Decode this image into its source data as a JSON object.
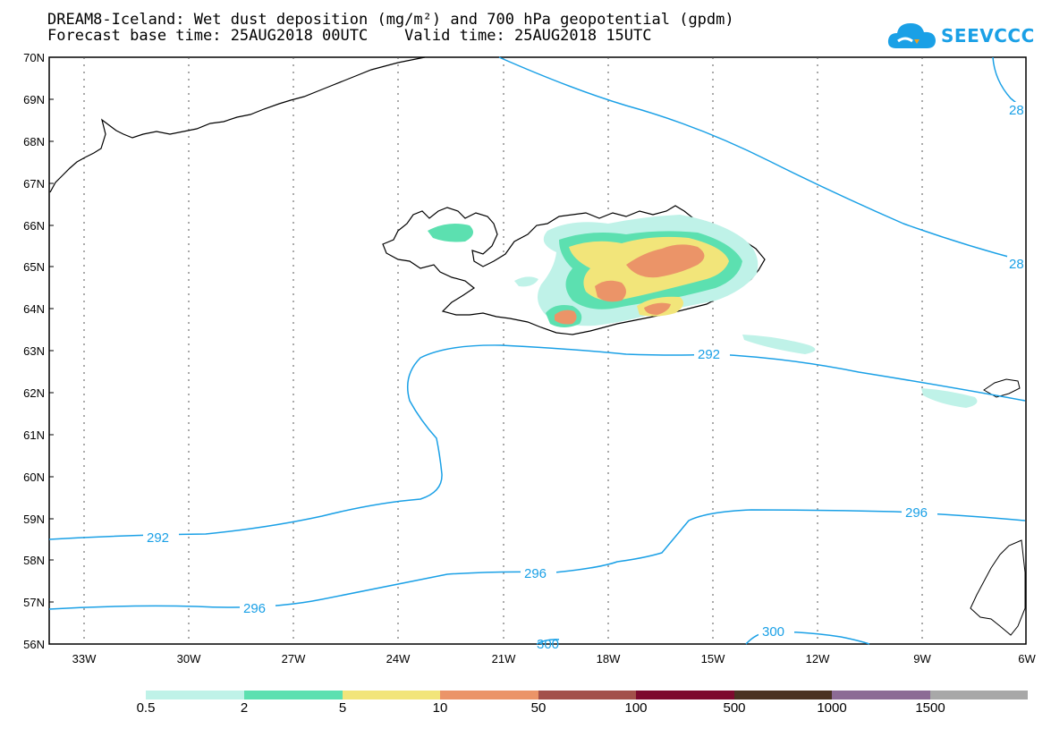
{
  "title": {
    "line1": "DREAM8-Iceland: Wet dust deposition (mg/m²) and 700 hPa geopotential (gpdm)",
    "line2": "Forecast base time: 25AUG2018 00UTC    Valid time: 25AUG2018 15UTC"
  },
  "logo": {
    "text": "SEEVCCC",
    "icon": "cloud-logo-icon"
  },
  "axes": {
    "lat_labels": [
      "70N",
      "69N",
      "68N",
      "67N",
      "66N",
      "65N",
      "64N",
      "63N",
      "62N",
      "61N",
      "60N",
      "59N",
      "58N",
      "57N",
      "56N"
    ],
    "lon_labels": [
      "33W",
      "30W",
      "27W",
      "24W",
      "21W",
      "18W",
      "15W",
      "12W",
      "9W",
      "6W"
    ]
  },
  "contours": {
    "labels": [
      "292",
      "292",
      "296",
      "296",
      "296",
      "300",
      "300",
      "28",
      "28"
    ],
    "line_color": "#1aa0e6"
  },
  "legend": {
    "thresholds": [
      "0.5",
      "2",
      "5",
      "10",
      "50",
      "100",
      "500",
      "1000",
      "1500"
    ],
    "colors": [
      "#bff2e8",
      "#5ce0b0",
      "#f2e57a",
      "#eb9468",
      "#a3504a",
      "#7d0a2e",
      "#4a3222",
      "#8c6b95",
      "#a8a8a8"
    ]
  }
}
